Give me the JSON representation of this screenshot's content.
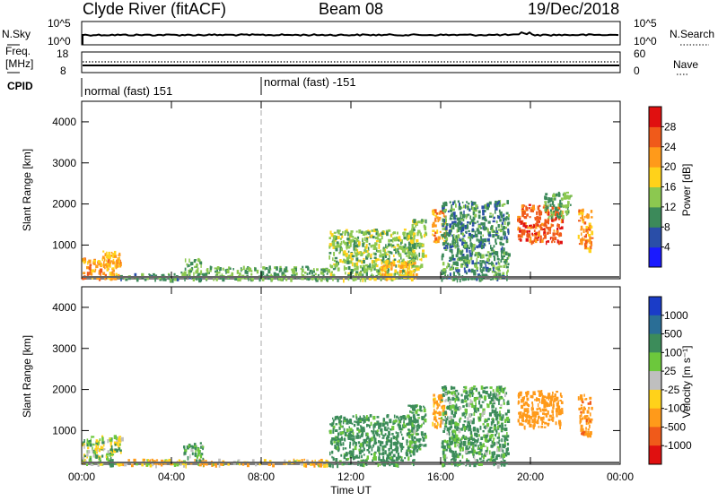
{
  "header": {
    "station": "Clyde River (fitACF)",
    "beam": "Beam 08",
    "date": "19/Dec/2018"
  },
  "status_panels": {
    "nsky_label": "N.Sky",
    "nsky_ticks": [
      "10^5",
      "10^0"
    ],
    "nsearch_label": "N.Search",
    "nsearch_ticks": [
      "10^5",
      "10^0"
    ],
    "freq_label_1": "Freq.",
    "freq_label_2": "[MHz]",
    "freq_ticks": [
      "18",
      "8"
    ],
    "nave_label": "Nave",
    "nave_ticks": [
      "60",
      "0"
    ],
    "cpid_label": "CPID",
    "cpid_segments": [
      {
        "name": "normal (fast) 151",
        "start_hour": 0
      },
      {
        "name": "normal (fast) -151",
        "start_hour": 8
      }
    ]
  },
  "axes": {
    "ylabel": "Slant Range [km]",
    "xlabel": "Time UT",
    "y_ticks": [
      "1000",
      "2000",
      "3000",
      "4000"
    ],
    "x_ticks": [
      "00:00",
      "04:00",
      "08:00",
      "12:00",
      "16:00",
      "20:00",
      "00:00"
    ]
  },
  "colorbars": {
    "power_label": "Power [dB]",
    "power_ticks": [
      "4",
      "8",
      "12",
      "16",
      "20",
      "24",
      "28"
    ],
    "power_colors": [
      "#1a1aff",
      "#2a4ea8",
      "#3c8a5a",
      "#8cc850",
      "#ffd21a",
      "#ff9a1a",
      "#f05a1a",
      "#e01010"
    ],
    "velocity_label": "Velocity [m s⁻¹]",
    "velocity_ticks": [
      "1000",
      "500",
      "100",
      "25",
      "-25",
      "-100",
      "-500",
      "-1000"
    ],
    "velocity_colors": [
      "#1a3cc8",
      "#2a6e96",
      "#3c8c5a",
      "#6cc83c",
      "#bfbfbf",
      "#ffd21a",
      "#ff9a1a",
      "#f05a1a",
      "#e01010"
    ]
  },
  "chart_data": [
    {
      "type": "heatmap",
      "quantity": "Power",
      "unit": "dB",
      "x_range_hours": [
        0,
        24
      ],
      "y_range_km": [
        180,
        4500
      ],
      "color_range": [
        0,
        32
      ],
      "regions": [
        {
          "t0": 0.0,
          "t1": 1.7,
          "r0": 180,
          "r1": 700,
          "level": 22
        },
        {
          "t0": 0.9,
          "t1": 1.7,
          "r0": 500,
          "r1": 900,
          "level": 20
        },
        {
          "t0": 1.5,
          "t1": 5.5,
          "r0": 180,
          "r1": 320,
          "level": 10
        },
        {
          "t0": 4.4,
          "t1": 5.3,
          "r0": 280,
          "r1": 720,
          "level": 12
        },
        {
          "t0": 5.5,
          "t1": 11.0,
          "r0": 180,
          "r1": 500,
          "level": 12
        },
        {
          "t0": 11.0,
          "t1": 14.8,
          "r0": 180,
          "r1": 1400,
          "level": 14
        },
        {
          "t0": 13.3,
          "t1": 15.0,
          "r0": 200,
          "r1": 650,
          "level": 20
        },
        {
          "t0": 14.5,
          "t1": 15.3,
          "r0": 500,
          "r1": 1650,
          "level": 14
        },
        {
          "t0": 15.6,
          "t1": 16.2,
          "r0": 1100,
          "r1": 1900,
          "level": 22
        },
        {
          "t0": 16.0,
          "t1": 19.0,
          "r0": 180,
          "r1": 2100,
          "level": 10
        },
        {
          "t0": 19.4,
          "t1": 21.4,
          "r0": 1100,
          "r1": 2000,
          "level": 26
        },
        {
          "t0": 20.6,
          "t1": 21.8,
          "r0": 1700,
          "r1": 2300,
          "level": 12
        },
        {
          "t0": 22.1,
          "t1": 22.7,
          "r0": 900,
          "r1": 1900,
          "level": 22
        }
      ]
    },
    {
      "type": "heatmap",
      "quantity": "Velocity",
      "unit": "m s^-1",
      "x_range_hours": [
        0,
        24
      ],
      "y_range_km": [
        180,
        4500
      ],
      "color_scale": [
        -1000,
        -500,
        -100,
        -25,
        25,
        100,
        500,
        1000
      ],
      "regions": [
        {
          "t0": 0.0,
          "t1": 1.8,
          "r0": 180,
          "r1": 900,
          "velocity": 50
        },
        {
          "t0": 1.8,
          "t1": 11.0,
          "r0": 180,
          "r1": 320,
          "velocity": -80
        },
        {
          "t0": 4.5,
          "t1": 5.4,
          "r0": 280,
          "r1": 720,
          "velocity": 150
        },
        {
          "t0": 11.0,
          "t1": 14.8,
          "r0": 180,
          "r1": 1400,
          "velocity": 200
        },
        {
          "t0": 14.5,
          "t1": 15.3,
          "r0": 500,
          "r1": 1650,
          "velocity": 150
        },
        {
          "t0": 15.6,
          "t1": 16.2,
          "r0": 1100,
          "r1": 1900,
          "velocity": -200
        },
        {
          "t0": 16.0,
          "t1": 19.0,
          "r0": 180,
          "r1": 2100,
          "velocity": 150
        },
        {
          "t0": 19.4,
          "t1": 21.4,
          "r0": 1100,
          "r1": 2000,
          "velocity": -300
        },
        {
          "t0": 22.1,
          "t1": 22.7,
          "r0": 900,
          "r1": 1900,
          "velocity": -400
        }
      ]
    }
  ]
}
